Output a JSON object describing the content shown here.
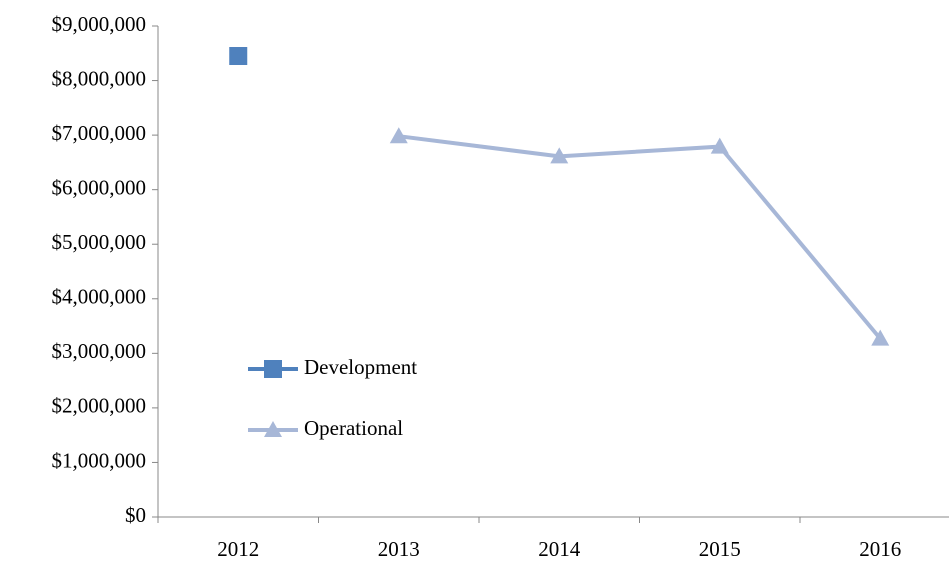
{
  "chart_data": {
    "type": "line",
    "categories": [
      "2012",
      "2013",
      "2014",
      "2015",
      "2016"
    ],
    "series": [
      {
        "name": "Development",
        "color": "#4f81bd",
        "marker": "square",
        "values": [
          8450000,
          null,
          null,
          null,
          null
        ]
      },
      {
        "name": "Operational",
        "color": "#a7b7d7",
        "marker": "triangle",
        "values": [
          null,
          6980000,
          6610000,
          6790000,
          3270000
        ]
      }
    ],
    "ylim": [
      0,
      9000000
    ],
    "yticks": [
      {
        "value": 0,
        "label": "$0"
      },
      {
        "value": 1000000,
        "label": "$1,000,000"
      },
      {
        "value": 2000000,
        "label": "$2,000,000"
      },
      {
        "value": 3000000,
        "label": "$3,000,000"
      },
      {
        "value": 4000000,
        "label": "$4,000,000"
      },
      {
        "value": 5000000,
        "label": "$5,000,000"
      },
      {
        "value": 6000000,
        "label": "$6,000,000"
      },
      {
        "value": 7000000,
        "label": "$7,000,000"
      },
      {
        "value": 8000000,
        "label": "$8,000,000"
      },
      {
        "value": 9000000,
        "label": "$9,000,000"
      }
    ],
    "grid": false,
    "legend": "left"
  }
}
